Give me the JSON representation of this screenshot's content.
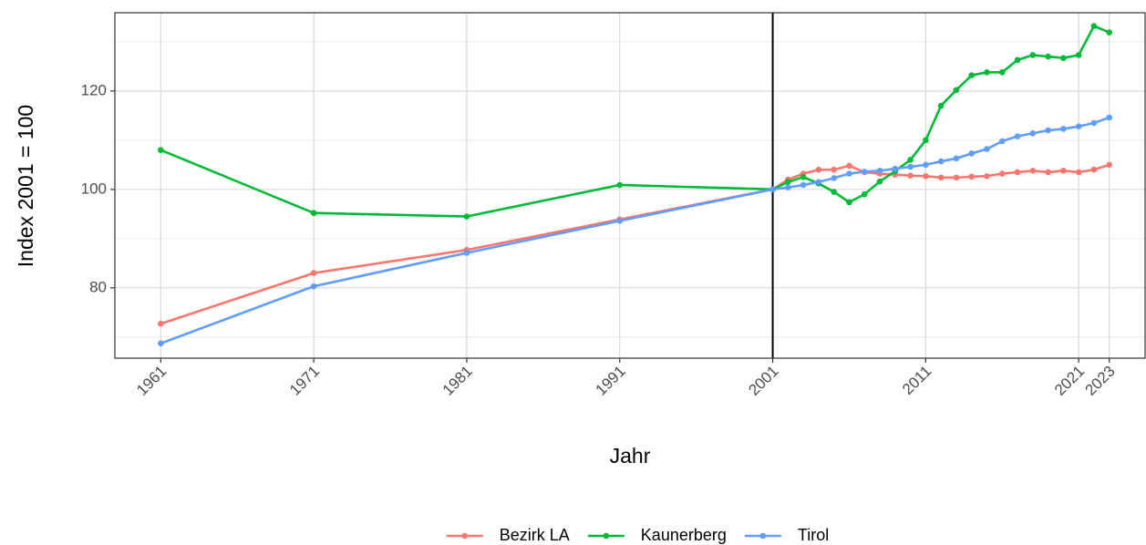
{
  "chart_data": {
    "type": "line",
    "x": [
      1961,
      1971,
      1981,
      1991,
      2001,
      2002,
      2003,
      2004,
      2005,
      2006,
      2007,
      2008,
      2009,
      2010,
      2011,
      2012,
      2013,
      2014,
      2015,
      2016,
      2017,
      2018,
      2019,
      2020,
      2021,
      2022,
      2023
    ],
    "series": [
      {
        "name": "Bezirk LA",
        "color": "#F8766D",
        "values": [
          72.7,
          83,
          87.7,
          93.9,
          100,
          102,
          103.2,
          104,
          104,
          104.8,
          103.5,
          103.2,
          103,
          102.8,
          102.7,
          102.4,
          102.4,
          102.6,
          102.7,
          103.2,
          103.5,
          103.8,
          103.5,
          103.8,
          103.5,
          104,
          105
        ]
      },
      {
        "name": "Kaunerberg",
        "color": "#00BA38",
        "values": [
          108,
          95.2,
          94.5,
          100.9,
          100,
          101.5,
          102.5,
          101.2,
          99.5,
          97.4,
          99,
          101.6,
          103.7,
          106,
          110,
          117,
          120.2,
          123.2,
          123.8,
          123.8,
          126.3,
          127.3,
          127,
          126.7,
          127.3,
          133.2,
          131.9
        ]
      },
      {
        "name": "Tirol",
        "color": "#619CFF",
        "values": [
          68.7,
          80.3,
          87.1,
          93.6,
          100,
          100.4,
          100.9,
          101.5,
          102.3,
          103.2,
          103.6,
          103.8,
          104.2,
          104.6,
          105,
          105.7,
          106.3,
          107.3,
          108.2,
          109.8,
          110.8,
          111.4,
          112,
          112.3,
          112.8,
          113.5,
          114.6
        ]
      }
    ],
    "xlabel": "Jahr",
    "ylabel": "Index 2001 = 100",
    "xlim": [
      1958,
      2025.4
    ],
    "ylim": [
      65.7,
      135.9
    ],
    "xticks": [
      1961,
      1971,
      1981,
      1991,
      2001,
      2011,
      2021,
      2023
    ],
    "yticks": [
      80,
      100,
      120
    ],
    "vline": 2001,
    "grid": true,
    "legend": "bottom"
  }
}
